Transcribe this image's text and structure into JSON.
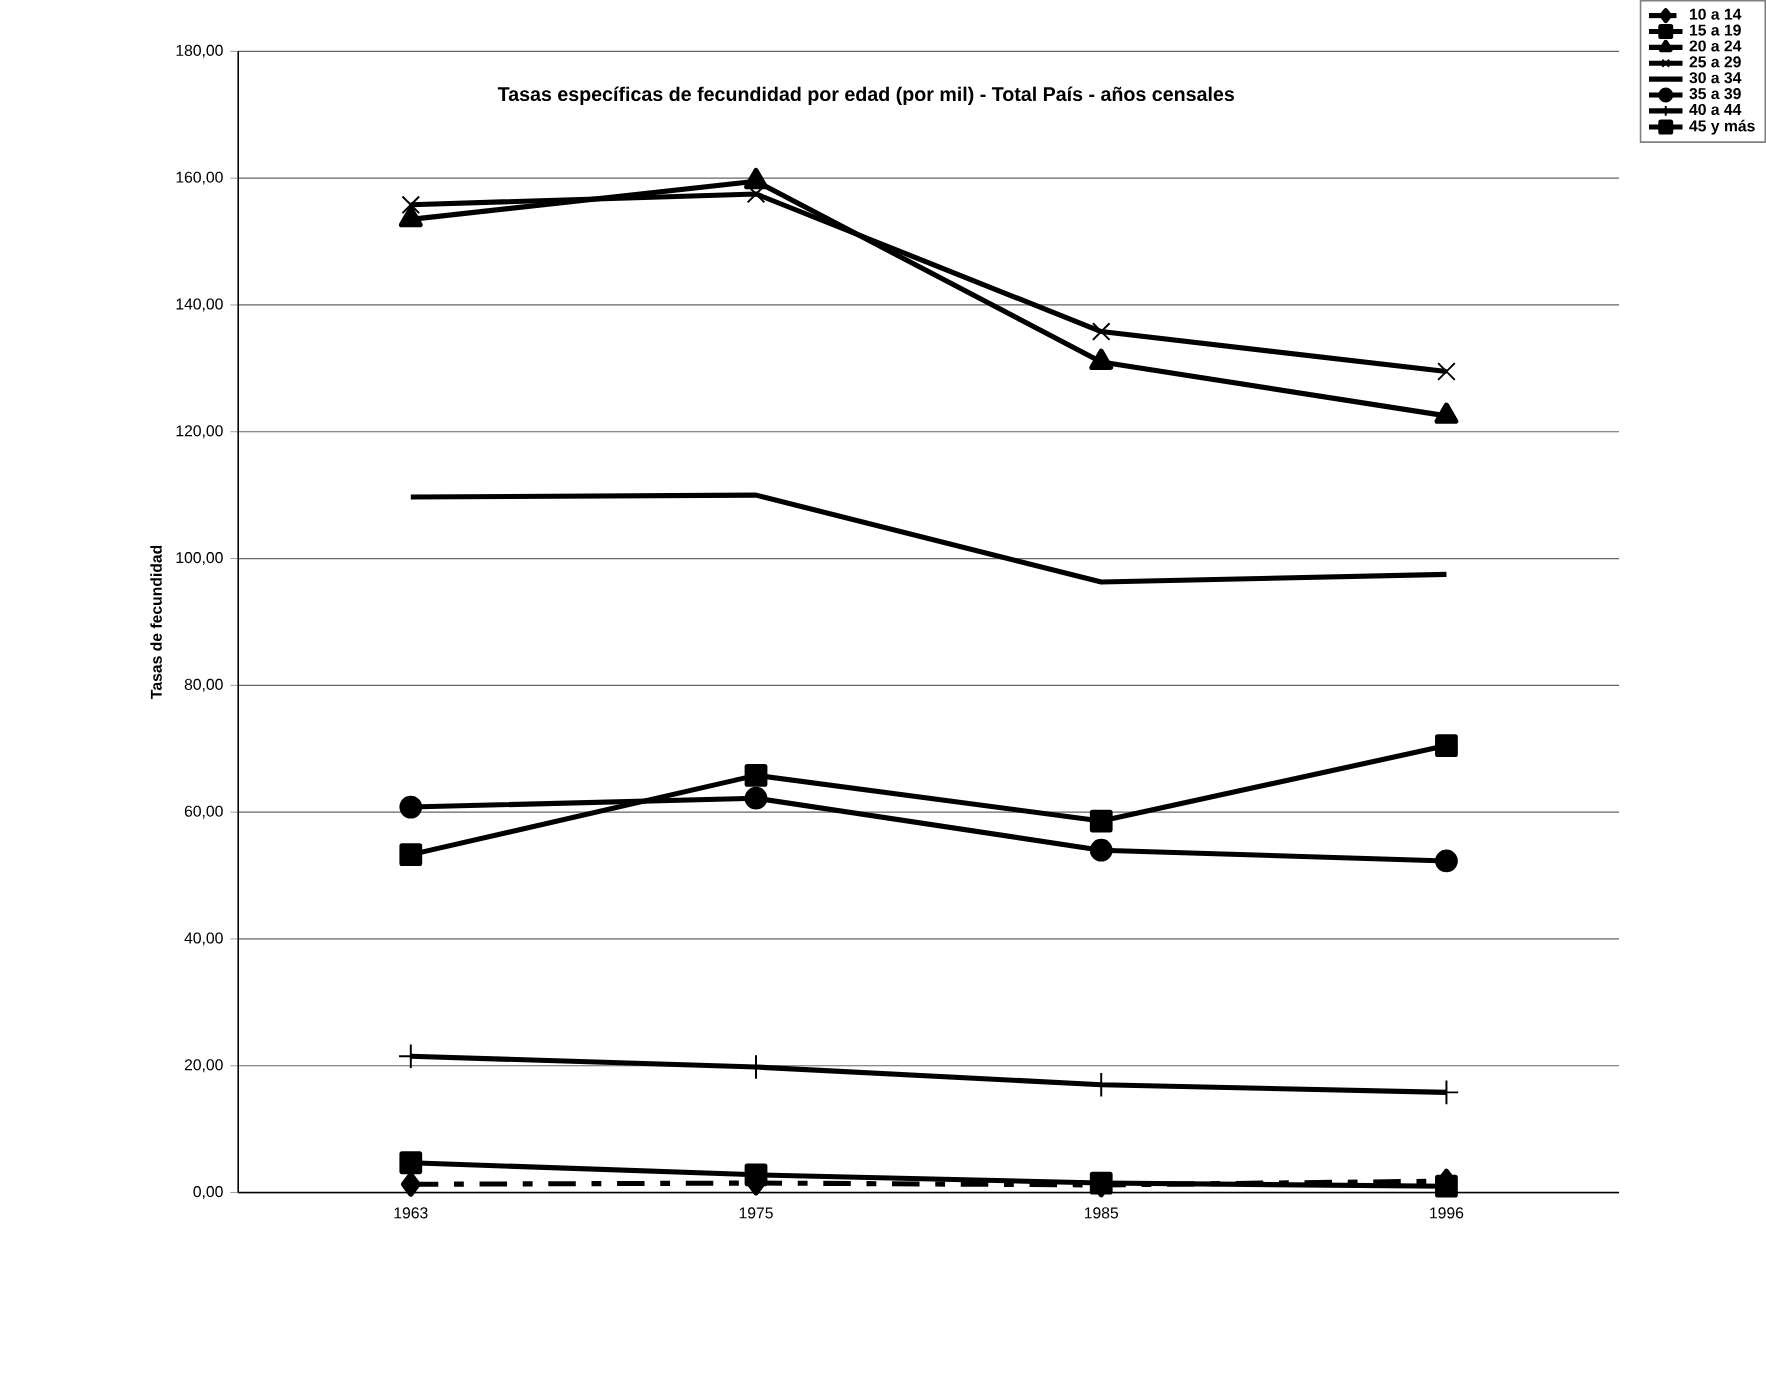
{
  "chart_data": {
    "type": "line",
    "title": "Tasas específicas de fecundidad por edad (por mil) - Total País - años censales",
    "ylabel": "Tasas de fecundidad",
    "categories": [
      "1963",
      "1975",
      "1985",
      "1996"
    ],
    "ylim": [
      0,
      180
    ],
    "yticks": [
      {
        "value": 0,
        "label": "0,00"
      },
      {
        "value": 20,
        "label": "20,00"
      },
      {
        "value": 40,
        "label": "40,00"
      },
      {
        "value": 60,
        "label": "60,00"
      },
      {
        "value": 80,
        "label": "80,00"
      },
      {
        "value": 100,
        "label": "100,00"
      },
      {
        "value": 120,
        "label": "120,00"
      },
      {
        "value": 140,
        "label": "140,00"
      },
      {
        "value": 160,
        "label": "160,00"
      },
      {
        "value": 180,
        "label": "180,00"
      }
    ],
    "grid": "y",
    "legend": "top right",
    "series": [
      {
        "name": "10 a 14",
        "color": "#000000",
        "marker": "diamond",
        "line_style": "dashed",
        "values": [
          1.3,
          1.5,
          1.2,
          1.8
        ]
      },
      {
        "name": "15 a 19",
        "color": "#000000",
        "marker": "square",
        "values": [
          53.3,
          65.8,
          58.6,
          70.5
        ]
      },
      {
        "name": "20 a 24",
        "color": "#000000",
        "marker": "triangle",
        "values": [
          153.5,
          159.5,
          131.0,
          122.5
        ]
      },
      {
        "name": "25 a 29",
        "color": "#000000",
        "marker": "cross",
        "values": [
          155.8,
          157.5,
          135.8,
          129.5
        ]
      },
      {
        "name": "30 a 34",
        "color": "#000000",
        "marker": "none",
        "values": [
          109.7,
          110.0,
          96.3,
          97.5
        ]
      },
      {
        "name": "35 a 39",
        "color": "#000000",
        "marker": "circle",
        "values": [
          60.8,
          62.2,
          54.0,
          52.3
        ]
      },
      {
        "name": "40 a 44",
        "color": "#000000",
        "marker": "plus",
        "values": [
          21.5,
          19.8,
          17.0,
          15.8
        ]
      },
      {
        "name": "45 y más",
        "color": "#000000",
        "marker": "square",
        "values": [
          4.7,
          2.8,
          1.5,
          1.0
        ]
      }
    ]
  }
}
